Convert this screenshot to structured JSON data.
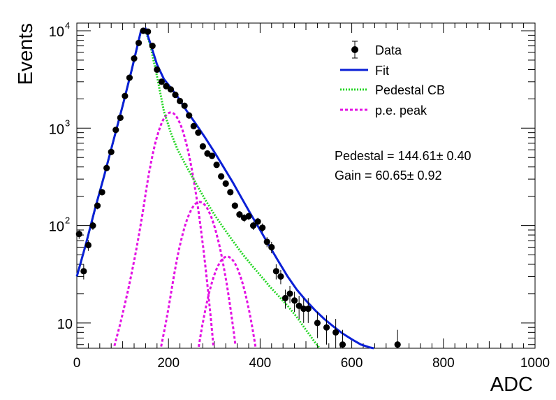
{
  "chart_data": {
    "type": "scatter",
    "title": "",
    "xlabel": "ADC",
    "ylabel": "Events",
    "xlim": [
      0,
      1000
    ],
    "ylim": [
      5.5,
      12000
    ],
    "y_scale": "log",
    "x_ticks": [
      0,
      200,
      400,
      600,
      800,
      1000
    ],
    "y_ticks": [
      {
        "value": 10,
        "base": "10",
        "exp": ""
      },
      {
        "value": 100,
        "base": "10",
        "exp": "2"
      },
      {
        "value": 1000,
        "base": "10",
        "exp": "3"
      },
      {
        "value": 10000,
        "base": "10",
        "exp": "4"
      }
    ],
    "legend_position": "top-right",
    "legend": [
      {
        "name": "Data",
        "style": "marker"
      },
      {
        "name": "Fit",
        "style": "solid",
        "color": "#0a1fd6"
      },
      {
        "name": "Pedestal CB",
        "style": "dotted",
        "color": "#22d622"
      },
      {
        "name": "p.e. peak",
        "style": "dashed",
        "color": "#e312e3"
      }
    ],
    "annotations": [
      "Pedestal = 144.61± 0.40",
      "Gain = 60.65± 0.92"
    ],
    "data": {
      "x": [
        5,
        15,
        25,
        35,
        45,
        55,
        65,
        75,
        85,
        95,
        105,
        115,
        125,
        135,
        145,
        155,
        165,
        175,
        185,
        195,
        205,
        215,
        225,
        235,
        245,
        255,
        265,
        275,
        285,
        295,
        305,
        315,
        325,
        335,
        345,
        355,
        365,
        375,
        385,
        395,
        405,
        415,
        425,
        435,
        445,
        455,
        465,
        475,
        485,
        495,
        505,
        525,
        545,
        565,
        580,
        700
      ],
      "y": [
        82,
        34,
        63,
        100,
        160,
        220,
        390,
        570,
        960,
        1280,
        2140,
        3300,
        5200,
        7500,
        10000,
        9800,
        7000,
        4000,
        3000,
        2700,
        2500,
        2200,
        1900,
        1700,
        1350,
        1050,
        900,
        650,
        550,
        520,
        420,
        320,
        270,
        220,
        160,
        130,
        120,
        125,
        100,
        110,
        95,
        68,
        60,
        34,
        30,
        18,
        20,
        17,
        15,
        14,
        14,
        10,
        9,
        8,
        6,
        6
      ],
      "err": [
        9,
        6,
        8,
        10,
        13,
        15,
        20,
        24,
        31,
        36,
        46,
        57,
        72,
        87,
        100,
        99,
        84,
        63,
        55,
        52,
        50,
        47,
        44,
        41,
        37,
        32,
        30,
        25,
        23,
        23,
        20,
        18,
        16,
        15,
        13,
        11,
        11,
        11,
        10,
        10,
        10,
        8,
        8,
        6,
        5,
        4,
        4,
        4,
        4,
        4,
        4,
        3,
        3,
        3,
        2.5,
        2.5
      ]
    },
    "curves": {
      "fit_x": [
        0,
        20,
        40,
        60,
        80,
        100,
        120,
        140,
        150,
        160,
        175,
        190,
        205,
        220,
        240,
        260,
        280,
        300,
        320,
        340,
        360,
        380,
        400,
        420,
        440,
        460,
        480,
        500,
        520,
        540,
        560,
        580,
        600,
        620,
        640,
        648
      ],
      "fit_y": [
        30,
        65,
        150,
        330,
        750,
        1700,
        4000,
        10000,
        10500,
        7500,
        4500,
        3200,
        2600,
        2100,
        1500,
        1100,
        800,
        570,
        400,
        280,
        190,
        130,
        90,
        62,
        43,
        30,
        22,
        17,
        13.5,
        11,
        9.2,
        7.8,
        6.8,
        6.0,
        5.6,
        5.5
      ],
      "pedestal_x": [
        0,
        20,
        40,
        60,
        80,
        100,
        120,
        140,
        150,
        160,
        175,
        190,
        205,
        220,
        240,
        260,
        280,
        300,
        320,
        340,
        360,
        380,
        400,
        420,
        440,
        460,
        480,
        500,
        520,
        530
      ],
      "pedestal_y": [
        30,
        65,
        150,
        330,
        750,
        1700,
        4000,
        9800,
        10000,
        7200,
        3400,
        1500,
        900,
        600,
        400,
        270,
        185,
        130,
        95,
        70,
        52,
        40,
        31,
        24,
        19,
        15,
        11.5,
        8.5,
        6.3,
        5.5
      ],
      "pe_peaks": [
        {
          "mu": 205,
          "sigma": 28,
          "amp": 1450,
          "tail": 2.0
        },
        {
          "mu": 268,
          "sigma": 30,
          "amp": 175,
          "tail": 2.0
        },
        {
          "mu": 328,
          "sigma": 30,
          "amp": 48,
          "tail": 2.0
        }
      ]
    }
  }
}
